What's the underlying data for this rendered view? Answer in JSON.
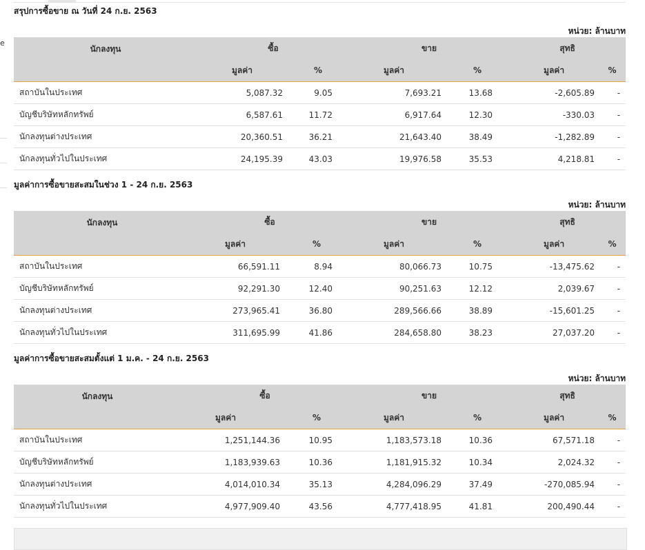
{
  "sidebar_fragments": [
    "e"
  ],
  "sections": [
    {
      "title": "สรุปการซื้อขาย ณ วันที่ 24 ก.ย. 2563",
      "unit": "หน่วย: ล้านบาท",
      "headers": {
        "investor": "นักลงทุน",
        "buy": "ซื้อ",
        "sell": "ขาย",
        "net": "สุทธิ",
        "value": "มูลค่า",
        "percent": "%"
      },
      "rows": [
        {
          "name": "สถาบันในประเทศ",
          "buy_value": "5,087.32",
          "buy_pct": "9.05",
          "sell_value": "7,693.21",
          "sell_pct": "13.68",
          "net_value": "-2,605.89",
          "net_pct": "-",
          "net_sign": "neg"
        },
        {
          "name": "บัญชีบริษัทหลักทรัพย์",
          "buy_value": "6,587.61",
          "buy_pct": "11.72",
          "sell_value": "6,917.64",
          "sell_pct": "12.30",
          "net_value": "-330.03",
          "net_pct": "-",
          "net_sign": "neg"
        },
        {
          "name": "นักลงทุนต่างประเทศ",
          "buy_value": "20,360.51",
          "buy_pct": "36.21",
          "sell_value": "21,643.40",
          "sell_pct": "38.49",
          "net_value": "-1,282.89",
          "net_pct": "-",
          "net_sign": "neg"
        },
        {
          "name": "นักลงทุนทั่วไปในประเทศ",
          "buy_value": "24,195.39",
          "buy_pct": "43.03",
          "sell_value": "19,976.58",
          "sell_pct": "35.53",
          "net_value": "4,218.81",
          "net_pct": "-",
          "net_sign": "pos"
        }
      ]
    },
    {
      "title": "มูลค่าการซื้อขายสะสมในช่วง 1 - 24 ก.ย. 2563",
      "unit": "หน่วย: ล้านบาท",
      "headers": {
        "investor": "นักลงทุน",
        "buy": "ซื้อ",
        "sell": "ขาย",
        "net": "สุทธิ",
        "value": "มูลค่า",
        "percent": "%"
      },
      "rows": [
        {
          "name": "สถาบันในประเทศ",
          "buy_value": "66,591.11",
          "buy_pct": "8.94",
          "sell_value": "80,066.73",
          "sell_pct": "10.75",
          "net_value": "-13,475.62",
          "net_pct": "-",
          "net_sign": "neg"
        },
        {
          "name": "บัญชีบริษัทหลักทรัพย์",
          "buy_value": "92,291.30",
          "buy_pct": "12.40",
          "sell_value": "90,251.63",
          "sell_pct": "12.12",
          "net_value": "2,039.67",
          "net_pct": "-",
          "net_sign": "pos"
        },
        {
          "name": "นักลงทุนต่างประเทศ",
          "buy_value": "273,965.41",
          "buy_pct": "36.80",
          "sell_value": "289,566.66",
          "sell_pct": "38.89",
          "net_value": "-15,601.25",
          "net_pct": "-",
          "net_sign": "neg"
        },
        {
          "name": "นักลงทุนทั่วไปในประเทศ",
          "buy_value": "311,695.99",
          "buy_pct": "41.86",
          "sell_value": "284,658.80",
          "sell_pct": "38.23",
          "net_value": "27,037.20",
          "net_pct": "-",
          "net_sign": "pos"
        }
      ]
    },
    {
      "title": "มูลค่าการซื้อขายสะสมตั้งแต่ 1 ม.ค. - 24 ก.ย. 2563",
      "unit": "หน่วย: ล้านบาท",
      "headers": {
        "investor": "นักลงทุน",
        "buy": "ซื้อ",
        "sell": "ขาย",
        "net": "สุทธิ",
        "value": "มูลค่า",
        "percent": "%"
      },
      "rows": [
        {
          "name": "สถาบันในประเทศ",
          "buy_value": "1,251,144.36",
          "buy_pct": "10.95",
          "sell_value": "1,183,573.18",
          "sell_pct": "10.36",
          "net_value": "67,571.18",
          "net_pct": "-",
          "net_sign": "pos"
        },
        {
          "name": "บัญชีบริษัทหลักทรัพย์",
          "buy_value": "1,183,939.63",
          "buy_pct": "10.36",
          "sell_value": "1,181,915.32",
          "sell_pct": "10.34",
          "net_value": "2,024.32",
          "net_pct": "-",
          "net_sign": "pos"
        },
        {
          "name": "นักลงทุนต่างประเทศ",
          "buy_value": "4,014,010.34",
          "buy_pct": "35.13",
          "sell_value": "4,284,096.29",
          "sell_pct": "37.49",
          "net_value": "-270,085.94",
          "net_pct": "-",
          "net_sign": "neg"
        },
        {
          "name": "นักลงทุนทั่วไปในประเทศ",
          "buy_value": "4,977,909.40",
          "buy_pct": "43.56",
          "sell_value": "4,777,418.95",
          "sell_pct": "41.81",
          "net_value": "200,490.44",
          "net_pct": "-",
          "net_sign": "pos"
        }
      ]
    }
  ],
  "colors": {
    "negative": "#e0242b",
    "positive": "#2c9a2c",
    "header_bg": "#d4d4d4",
    "accent_rule": "#e8a33d"
  }
}
